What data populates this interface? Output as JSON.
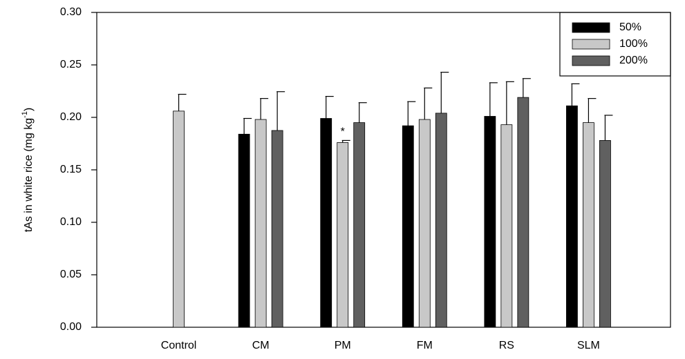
{
  "chart_data": {
    "type": "bar",
    "y_label": {
      "text": "tAs in white rice (mg kg",
      "superscript": "-1",
      "suffix": ")"
    },
    "categories": [
      "Control",
      "CM",
      "PM",
      "FM",
      "RS",
      "SLM"
    ],
    "series": [
      {
        "name": "50%",
        "color": "#000000",
        "values": [
          null,
          0.184,
          0.199,
          0.192,
          0.201,
          0.211
        ],
        "errors": [
          null,
          0.015,
          0.021,
          0.023,
          0.032,
          0.021
        ]
      },
      {
        "name": "100%",
        "color": "#c8c8c8",
        "values": [
          0.206,
          0.198,
          0.176,
          0.198,
          0.193,
          0.195
        ],
        "errors": [
          0.016,
          0.02,
          0.002,
          0.03,
          0.041,
          0.023
        ]
      },
      {
        "name": "200%",
        "color": "#606060",
        "values": [
          null,
          0.1875,
          0.195,
          0.204,
          0.219,
          0.178
        ],
        "errors": [
          null,
          0.037,
          0.019,
          0.039,
          0.018,
          0.024
        ]
      }
    ],
    "annotations": [
      {
        "text": "*",
        "category": "PM",
        "series": "100%"
      }
    ],
    "ylim": [
      0,
      0.3
    ],
    "yticks": [
      {
        "value": 0,
        "label": "0.00"
      },
      {
        "value": 0.05,
        "label": "0.05"
      },
      {
        "value": 0.1,
        "label": "0.10"
      },
      {
        "value": 0.15,
        "label": "0.15"
      },
      {
        "value": 0.2,
        "label": "0.20"
      },
      {
        "value": 0.25,
        "label": "0.25"
      },
      {
        "value": 0.3,
        "label": "0.30"
      }
    ],
    "legend": "top-right",
    "grid": false
  }
}
